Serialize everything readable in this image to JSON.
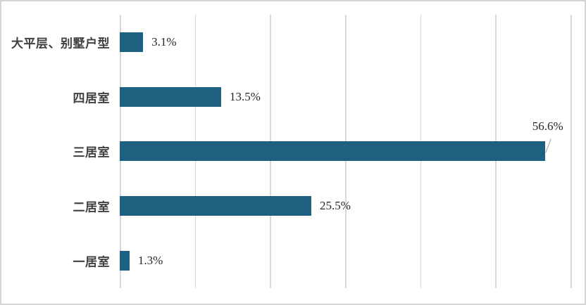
{
  "chart_data": {
    "type": "bar",
    "orientation": "horizontal",
    "title": "",
    "xlabel": "",
    "ylabel": "",
    "categories": [
      "大平层、别墅户型",
      "四居室",
      "三居室",
      "二居室",
      "一居室"
    ],
    "values": [
      3.1,
      13.5,
      56.6,
      25.5,
      1.3
    ],
    "value_labels": [
      "3.1%",
      "13.5%",
      "56.6%",
      "25.5%",
      "1.3%"
    ],
    "xlim": [
      0,
      60
    ],
    "gridline_interval": 10,
    "grid": true,
    "legend_position": "none",
    "callout_index": 2,
    "bar_color": "#1E6080",
    "grid_color": "#d9d9d9",
    "frame_color": "#d5d5d5",
    "category_label_color": "#404040",
    "value_label_color": "#262626"
  }
}
